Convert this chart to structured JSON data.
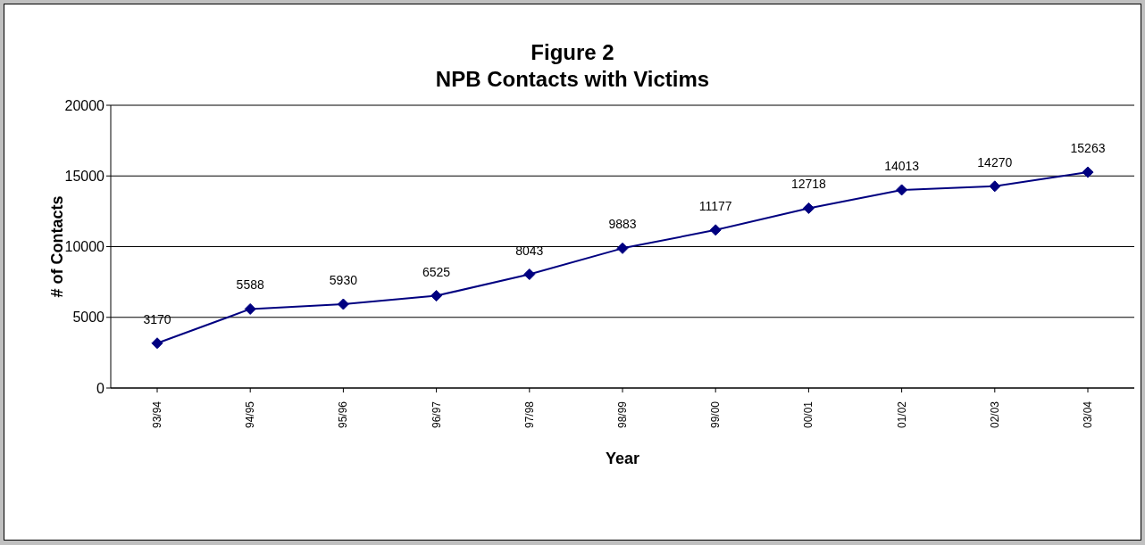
{
  "chart_data": {
    "type": "line",
    "title": "Figure 2",
    "subtitle": "NPB Contacts with Victims",
    "xlabel": "Year",
    "ylabel": "# of Contacts",
    "categories": [
      "93/94",
      "94/95",
      "95/96",
      "96/97",
      "97/98",
      "98/99",
      "99/00",
      "00/01",
      "01/02",
      "02/03",
      "03/04"
    ],
    "series": [
      {
        "color": "#000080",
        "values": [
          3170,
          5588,
          5930,
          6525,
          8043,
          9883,
          11177,
          12718,
          14013,
          14270,
          15263
        ]
      }
    ],
    "ylim": [
      0,
      20000
    ],
    "yticks": [
      0,
      5000,
      10000,
      15000,
      20000
    ],
    "grid": "y",
    "legend": false,
    "marker": "diamond",
    "line_style": "solid",
    "data_labels": true
  }
}
